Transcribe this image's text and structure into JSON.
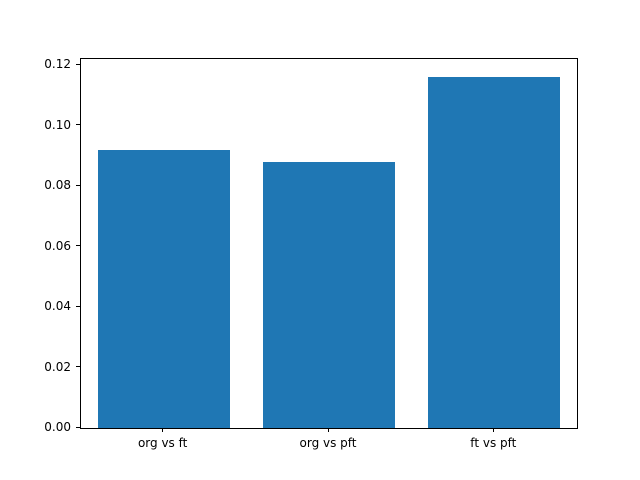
{
  "chart_data": {
    "type": "bar",
    "categories": [
      "org vs ft",
      "org vs pft",
      "ft vs pft"
    ],
    "values": [
      0.092,
      0.088,
      0.116
    ],
    "title": "",
    "xlabel": "",
    "ylabel": "",
    "ylim": [
      0,
      0.122
    ],
    "yticks": [
      0.0,
      0.02,
      0.04,
      0.06,
      0.08,
      0.1,
      0.12
    ],
    "ytick_format_decimals": 2,
    "bar_color": "#1f77b4",
    "bar_width_fraction": 0.8,
    "grid": false,
    "legend": "none",
    "background_color": "#ffffff",
    "axis_color": "#000000"
  }
}
